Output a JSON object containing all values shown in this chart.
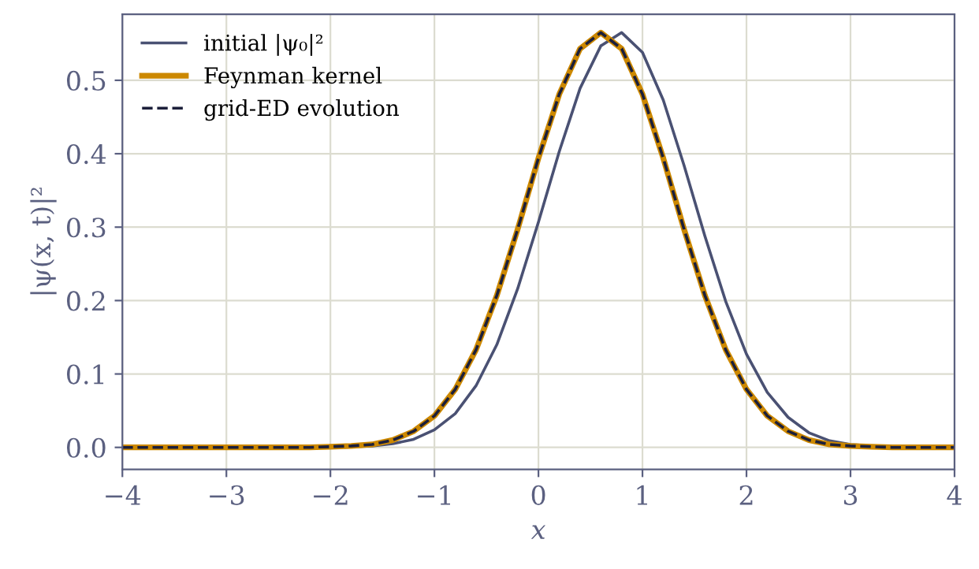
{
  "chart_data": {
    "type": "line",
    "x": [
      -4,
      -3.8,
      -3.6,
      -3.4,
      -3.2,
      -3,
      -2.8,
      -2.6,
      -2.4,
      -2.2,
      -2,
      -1.8,
      -1.6,
      -1.4,
      -1.2,
      -1,
      -0.8,
      -0.6,
      -0.4,
      -0.2,
      0,
      0.2,
      0.4,
      0.6,
      0.8,
      1,
      1.2,
      1.4,
      1.6,
      1.8,
      2,
      2.2,
      2.4,
      2.6,
      2.8,
      3,
      3.2,
      3.4,
      3.6,
      3.8,
      4
    ],
    "series": [
      {
        "name": "initial |ψ₀|²",
        "color": "#4a5173",
        "line_style": "solid",
        "values": [
          0,
          0,
          0,
          0,
          0,
          0,
          0,
          0,
          0,
          0,
          0,
          0.001,
          0.002,
          0.005,
          0.011,
          0.024,
          0.046,
          0.084,
          0.14,
          0.216,
          0.307,
          0.403,
          0.489,
          0.547,
          0.565,
          0.538,
          0.473,
          0.384,
          0.288,
          0.199,
          0.127,
          0.075,
          0.041,
          0.02,
          0.009,
          0.004,
          0.002,
          0.001,
          0,
          0,
          0
        ]
      },
      {
        "name": "Feynman kernel",
        "color": "#cc8800",
        "line_style": "solid",
        "values": [
          0,
          0,
          0,
          0,
          0,
          0,
          0,
          0,
          0,
          0,
          0.001,
          0.002,
          0.004,
          0.01,
          0.022,
          0.043,
          0.079,
          0.133,
          0.207,
          0.297,
          0.394,
          0.481,
          0.543,
          0.565,
          0.543,
          0.481,
          0.394,
          0.297,
          0.207,
          0.133,
          0.079,
          0.043,
          0.022,
          0.01,
          0.004,
          0.002,
          0.001,
          0,
          0,
          0,
          0
        ]
      },
      {
        "name": "grid-ED evolution",
        "color": "#1c1f3a",
        "line_style": "dashed",
        "values": [
          0,
          0,
          0,
          0,
          0,
          0,
          0,
          0,
          0,
          0,
          0.001,
          0.002,
          0.004,
          0.01,
          0.022,
          0.043,
          0.079,
          0.133,
          0.207,
          0.297,
          0.394,
          0.481,
          0.543,
          0.565,
          0.543,
          0.481,
          0.394,
          0.297,
          0.207,
          0.133,
          0.079,
          0.043,
          0.022,
          0.01,
          0.004,
          0.002,
          0.001,
          0,
          0,
          0,
          0
        ]
      }
    ],
    "xlabel": "x",
    "ylabel": "|ψ(x, t)|²",
    "xlim": [
      -4,
      4
    ],
    "xticks": [
      {
        "value": -4,
        "label": "−4"
      },
      {
        "value": -3,
        "label": "−3"
      },
      {
        "value": -2,
        "label": "−2"
      },
      {
        "value": -1,
        "label": "−1"
      },
      0,
      1,
      2,
      3,
      4
    ],
    "ylim": [
      -0.03,
      0.59
    ],
    "yticks": [
      {
        "value": 0,
        "label": "0.0"
      },
      0.1,
      0.2,
      0.3,
      0.4,
      0.5
    ],
    "grid": true,
    "legend": "top left"
  }
}
